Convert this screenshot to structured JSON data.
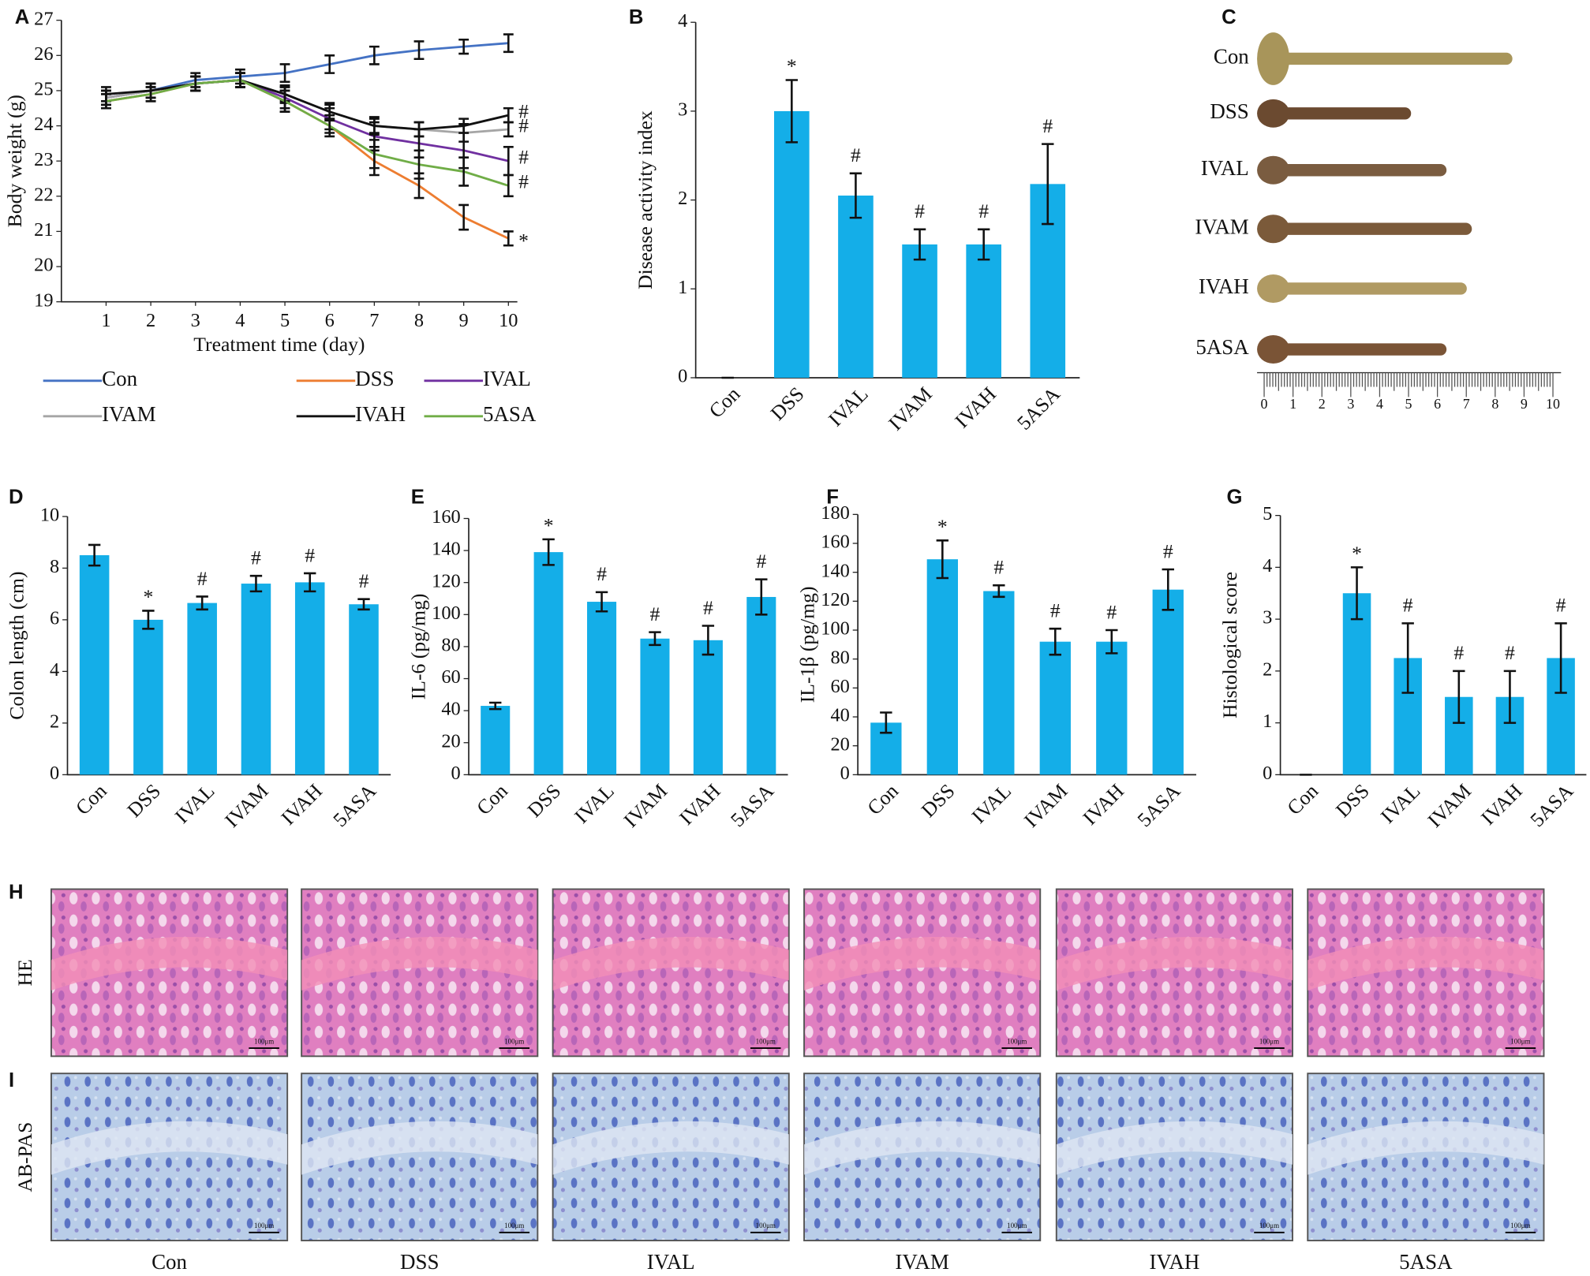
{
  "chart_data": [
    {
      "type": "line",
      "panel": "A",
      "xlabel": "Treatment time (day)",
      "ylabel": "Body weight (g)",
      "x": [
        1,
        2,
        3,
        4,
        5,
        6,
        7,
        8,
        9,
        10
      ],
      "xlim": [
        0,
        10.2
      ],
      "xticks": [
        1,
        2,
        3,
        4,
        5,
        6,
        7,
        8,
        9,
        10
      ],
      "ylim": [
        19,
        27
      ],
      "yticks": [
        19,
        20,
        21,
        22,
        23,
        24,
        25,
        26,
        27
      ],
      "series": [
        {
          "name": "Con",
          "color": "#4472c4",
          "values": [
            24.8,
            25.0,
            25.3,
            25.4,
            25.5,
            25.75,
            26.0,
            26.15,
            26.25,
            26.35
          ],
          "errors": [
            0.2,
            0.2,
            0.2,
            0.2,
            0.25,
            0.25,
            0.25,
            0.25,
            0.2,
            0.25
          ]
        },
        {
          "name": "DSS",
          "color": "#ed7d31",
          "values": [
            24.7,
            24.9,
            25.2,
            25.3,
            24.7,
            24.0,
            23.0,
            22.3,
            21.4,
            20.8
          ],
          "errors": [
            0.2,
            0.2,
            0.2,
            0.2,
            0.3,
            0.2,
            0.4,
            0.35,
            0.35,
            0.2
          ],
          "end_label": "*"
        },
        {
          "name": "IVAL",
          "color": "#7030a0",
          "values": [
            24.8,
            25.0,
            25.2,
            25.3,
            24.8,
            24.2,
            23.7,
            23.5,
            23.3,
            23.0
          ],
          "errors": [
            0.2,
            0.2,
            0.2,
            0.2,
            0.3,
            0.3,
            0.4,
            0.4,
            0.5,
            0.4
          ],
          "end_label": "#"
        },
        {
          "name": "IVAM",
          "color": "#a5a5a5",
          "values": [
            24.8,
            25.0,
            25.2,
            25.3,
            24.9,
            24.4,
            24.0,
            23.9,
            23.8,
            23.9
          ],
          "errors": [
            0.2,
            0.2,
            0.2,
            0.2,
            0.25,
            0.25,
            0.25,
            0.2,
            0.25,
            0.2
          ],
          "end_label": "#"
        },
        {
          "name": "IVAH",
          "color": "#111111",
          "values": [
            24.9,
            25.0,
            25.2,
            25.3,
            24.9,
            24.4,
            24.0,
            23.9,
            24.0,
            24.3
          ],
          "errors": [
            0.2,
            0.2,
            0.2,
            0.2,
            0.2,
            0.2,
            0.2,
            0.2,
            0.2,
            0.2
          ],
          "end_label": "#"
        },
        {
          "name": "5ASA",
          "color": "#70ad47",
          "values": [
            24.7,
            24.9,
            25.2,
            25.3,
            24.7,
            24.0,
            23.2,
            22.9,
            22.7,
            22.3
          ],
          "errors": [
            0.2,
            0.2,
            0.2,
            0.2,
            0.3,
            0.3,
            0.4,
            0.4,
            0.4,
            0.3
          ],
          "end_label": "#"
        }
      ]
    },
    {
      "type": "bar",
      "panel": "B",
      "ylabel": "Disease activity index",
      "color": "#14aee8",
      "categories": [
        "Con",
        "DSS",
        "IVAL",
        "IVAM",
        "IVAH",
        "5ASA"
      ],
      "values": [
        0,
        3,
        2.05,
        1.5,
        1.5,
        2.18
      ],
      "errors": [
        0,
        0.35,
        0.25,
        0.17,
        0.17,
        0.45
      ],
      "annotations": [
        null,
        "*",
        "#",
        "#",
        "#",
        "#"
      ],
      "ylim": [
        0,
        4
      ],
      "yticks": [
        0,
        1,
        2,
        3,
        4
      ]
    },
    {
      "type": "bar",
      "panel": "D",
      "ylabel": "Colon length (cm)",
      "color": "#14aee8",
      "categories": [
        "Con",
        "DSS",
        "IVAL",
        "IVAM",
        "IVAH",
        "5ASA"
      ],
      "values": [
        8.5,
        6.0,
        6.65,
        7.4,
        7.45,
        6.6
      ],
      "errors": [
        0.4,
        0.35,
        0.25,
        0.3,
        0.35,
        0.2
      ],
      "annotations": [
        null,
        "*",
        "#",
        "#",
        "#",
        "#"
      ],
      "ylim": [
        0,
        10
      ],
      "yticks": [
        0,
        2,
        4,
        6,
        8,
        10
      ]
    },
    {
      "type": "bar",
      "panel": "E",
      "ylabel": "IL-6 (pg/mg)",
      "color": "#14aee8",
      "categories": [
        "Con",
        "DSS",
        "IVAL",
        "IVAM",
        "IVAH",
        "5ASA"
      ],
      "values": [
        43,
        139,
        108,
        85,
        84,
        111
      ],
      "errors": [
        2,
        8,
        6,
        4,
        9,
        11
      ],
      "annotations": [
        null,
        "*",
        "#",
        "#",
        "#",
        "#"
      ],
      "ylim": [
        0,
        160
      ],
      "yticks": [
        0,
        20,
        40,
        60,
        80,
        100,
        120,
        140,
        160
      ]
    },
    {
      "type": "bar",
      "panel": "F",
      "ylabel": "IL-1β (pg/mg)",
      "color": "#14aee8",
      "categories": [
        "Con",
        "DSS",
        "IVAL",
        "IVAM",
        "IVAH",
        "5ASA"
      ],
      "values": [
        36,
        149,
        127,
        92,
        92,
        128
      ],
      "errors": [
        7,
        13,
        4,
        9,
        8,
        14
      ],
      "annotations": [
        null,
        "*",
        "#",
        "#",
        "#",
        "#"
      ],
      "ylim": [
        0,
        180
      ],
      "yticks": [
        0,
        20,
        40,
        60,
        80,
        100,
        120,
        140,
        160,
        180
      ]
    },
    {
      "type": "bar",
      "panel": "G",
      "ylabel": "Histological score",
      "color": "#14aee8",
      "categories": [
        "Con",
        "DSS",
        "IVAL",
        "IVAM",
        "IVAH",
        "5ASA"
      ],
      "values": [
        0,
        3.5,
        2.25,
        1.5,
        1.5,
        2.25
      ],
      "errors": [
        0,
        0.5,
        0.67,
        0.5,
        0.5,
        0.67
      ],
      "annotations": [
        null,
        "*",
        "#",
        "#",
        "#",
        "#"
      ],
      "ylim": [
        0,
        5
      ],
      "yticks": [
        0,
        1,
        2,
        3,
        4,
        5
      ]
    }
  ],
  "colon_photos": {
    "panel": "C",
    "labels": [
      "Con",
      "DSS",
      "IVAL",
      "IVAM",
      "IVAH",
      "5ASA"
    ],
    "ruler_ticks": [
      "0",
      "1",
      "2",
      "3",
      "4",
      "5",
      "6",
      "7",
      "8",
      "9",
      "10"
    ]
  },
  "histology": {
    "panels": [
      "H",
      "I"
    ],
    "rows": [
      "HE",
      "AB-PAS"
    ],
    "columns": [
      "Con",
      "DSS",
      "IVAL",
      "IVAM",
      "IVAH",
      "5ASA"
    ],
    "scale_bar": "100μm"
  }
}
